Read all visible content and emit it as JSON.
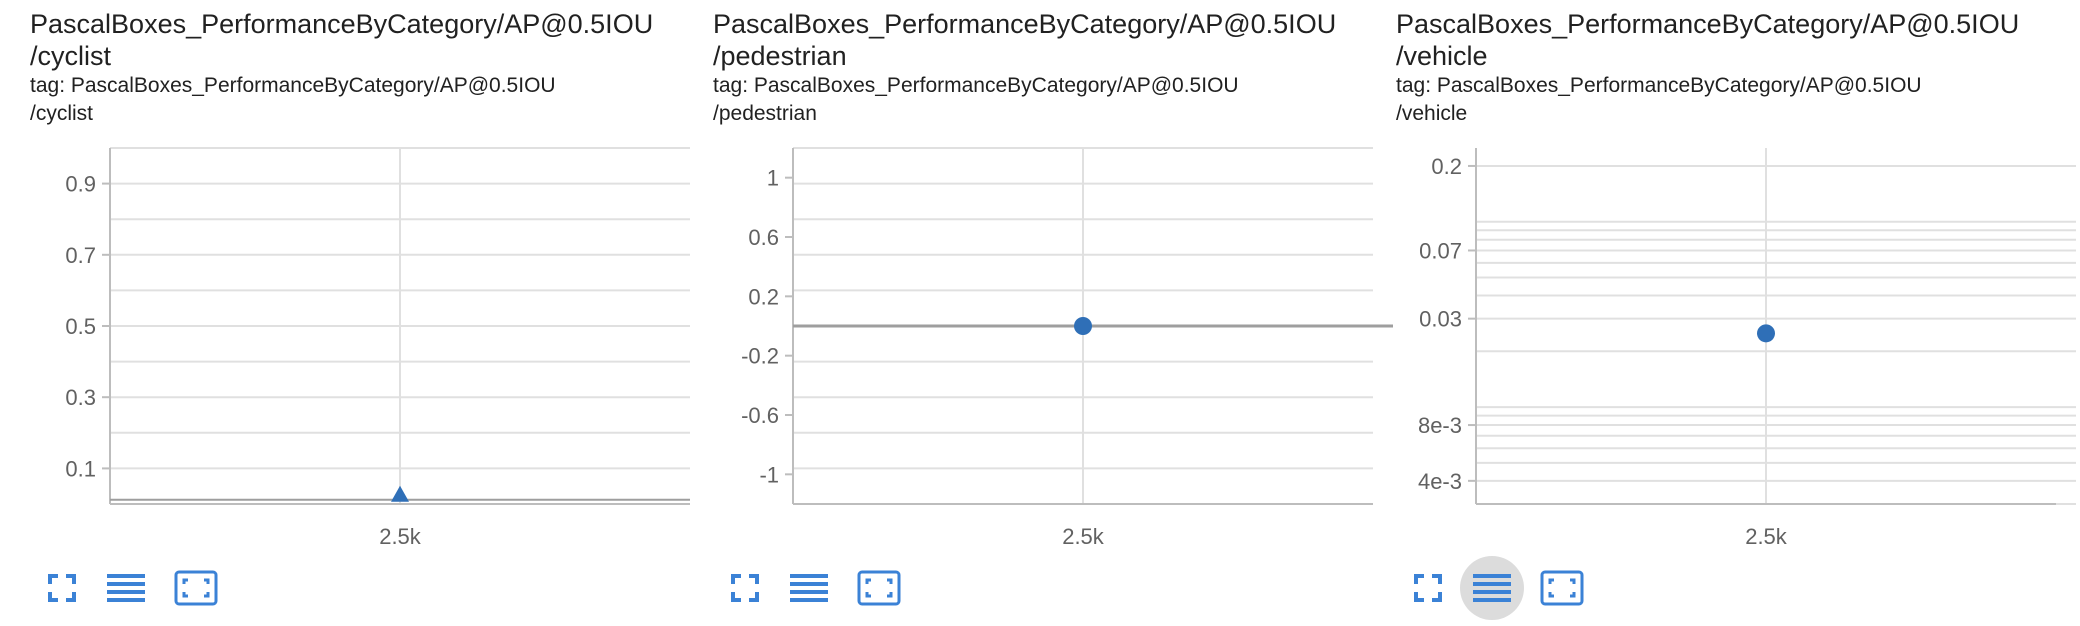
{
  "colors": {
    "accent": "#3b82d6",
    "mark": "#2f6fb7",
    "grid": "#e0e0e0",
    "axis": "#bdbdbd",
    "tick_text": "#616161"
  },
  "toolbar_icons": [
    "fullscreen-icon",
    "toggle-log-scale-icon",
    "fit-domain-icon"
  ],
  "cards": [
    {
      "title_line1": "PascalBoxes_PerformanceByCategory/AP@0.5IOU",
      "title_line2": "/cyclist",
      "tag_line1": "tag: PascalBoxes_PerformanceByCategory/AP@0.5IOU",
      "tag_line2": "/cyclist",
      "chart_data": {
        "type": "scatter",
        "x_ticks": [
          "2.5k"
        ],
        "y_ticks": [
          "0.9",
          "0.7",
          "0.5",
          "0.3",
          "0.1"
        ],
        "y_scale": "linear",
        "ylim": [
          0,
          1
        ],
        "marker": "triangle",
        "points": [
          {
            "x": 2500,
            "y": 0.012
          }
        ],
        "grid": true
      }
    },
    {
      "title_line1": "PascalBoxes_PerformanceByCategory/AP@0.5IOU",
      "title_line2": "/pedestrian",
      "tag_line1": "tag: PascalBoxes_PerformanceByCategory/AP@0.5IOU",
      "tag_line2": "/pedestrian",
      "chart_data": {
        "type": "scatter",
        "x_ticks": [
          "2.5k"
        ],
        "y_ticks": [
          "1",
          "0.6",
          "0.2",
          "-0.2",
          "-0.6",
          "-1"
        ],
        "y_scale": "linear",
        "ylim": [
          -1.2,
          1.2
        ],
        "marker": "circle",
        "points": [
          {
            "x": 2500,
            "y": 0
          }
        ],
        "grid": true
      }
    },
    {
      "title_line1": "PascalBoxes_PerformanceByCategory/AP@0.5IOU",
      "title_line2": "/vehicle",
      "tag_line1": "tag: PascalBoxes_PerformanceByCategory/AP@0.5IOU",
      "tag_line2": "/vehicle",
      "chart_data": {
        "type": "scatter",
        "x_ticks": [
          "2.5k"
        ],
        "y_ticks": [
          "0.2",
          "0.07",
          "0.03",
          "8e-3",
          "4e-3"
        ],
        "y_scale": "log",
        "ylim": [
          0.003,
          0.25
        ],
        "marker": "circle",
        "points": [
          {
            "x": 2500,
            "y": 0.025
          }
        ],
        "grid": true
      }
    }
  ]
}
